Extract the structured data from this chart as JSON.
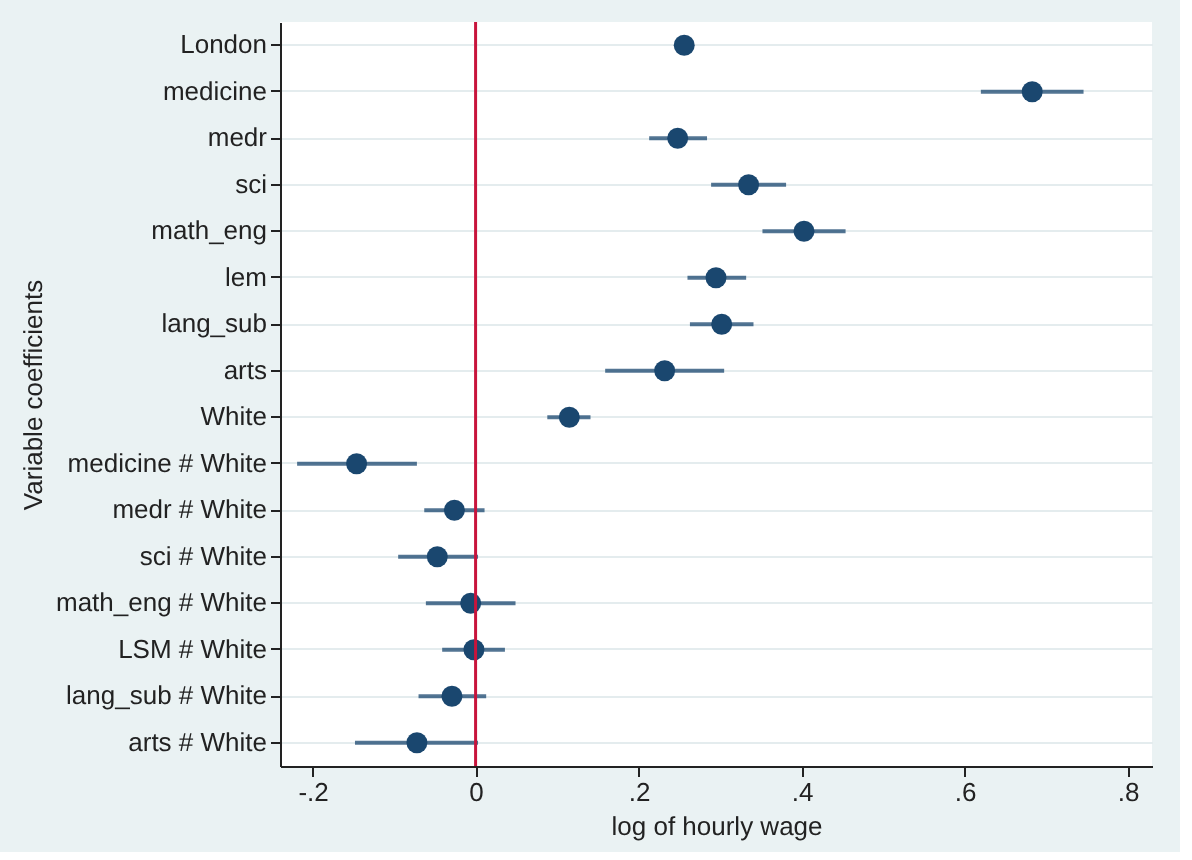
{
  "chart_data": {
    "type": "scatter",
    "xlabel": "log of hourly wage",
    "ylabel": "Variable coefficients",
    "orientation": "horizontal",
    "categories": [
      "London",
      "medicine",
      "medr",
      "sci",
      "math_eng",
      "lem",
      "lang_sub",
      "arts",
      "White",
      "medicine # White",
      "medr # White",
      "sci # White",
      "math_eng # White",
      "LSM # White",
      "lang_sub # White",
      "arts # White"
    ],
    "series": [
      {
        "color": "#1a476f",
        "values": [
          0.256,
          0.683,
          0.248,
          0.335,
          0.403,
          0.295,
          0.302,
          0.232,
          0.115,
          -0.146,
          -0.026,
          -0.047,
          -0.006,
          -0.002,
          -0.029,
          -0.072
        ],
        "errors": [
          null,
          [
            0.62,
            0.746
          ],
          [
            0.213,
            0.284
          ],
          [
            0.289,
            0.381
          ],
          [
            0.352,
            0.454
          ],
          [
            0.26,
            0.332
          ],
          [
            0.263,
            0.341
          ],
          [
            0.159,
            0.305
          ],
          [
            0.088,
            0.141
          ],
          [
            -0.219,
            -0.072
          ],
          [
            -0.063,
            0.011
          ],
          [
            -0.095,
            0.003
          ],
          [
            -0.061,
            0.049
          ],
          [
            -0.041,
            0.036
          ],
          [
            -0.07,
            0.013
          ],
          [
            -0.148,
            0.003
          ]
        ]
      }
    ],
    "xlim": [
      -0.24,
      0.83
    ],
    "xticks": [
      {
        "value": -0.2,
        "label": "-.2"
      },
      0,
      {
        "value": 0.2,
        "label": ".2"
      },
      {
        "value": 0.4,
        "label": ".4"
      },
      {
        "value": 0.6,
        "label": ".6"
      },
      {
        "value": 0.8,
        "label": ".8"
      }
    ],
    "ref_lines": [
      {
        "axis": "x",
        "value": 0,
        "color": "#c8143c"
      }
    ],
    "grid": "y",
    "marker": "circle"
  }
}
